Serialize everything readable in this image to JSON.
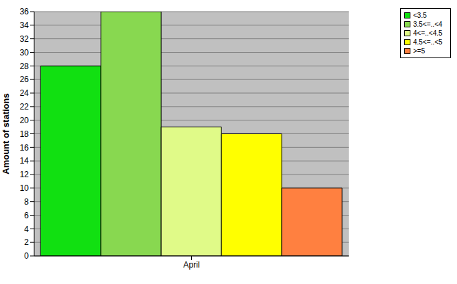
{
  "chart_data": {
    "type": "bar",
    "y_label": "Amount of stations",
    "categories": [
      "April"
    ],
    "series": [
      {
        "name": "<3.5",
        "color": "#11e011",
        "values": [
          28
        ]
      },
      {
        "name": "3.5<=..<4",
        "color": "#88d850",
        "values": [
          36
        ]
      },
      {
        "name": "4<=..<4.5",
        "color": "#e0fa88",
        "values": [
          19
        ]
      },
      {
        "name": "4.5<=..<5",
        "color": "#ffff00",
        "values": [
          18
        ]
      },
      {
        "name": ">=5",
        "color": "#ff8040",
        "values": [
          10
        ]
      }
    ],
    "ylim": [
      0,
      36
    ],
    "yticks": [
      0,
      2,
      4,
      6,
      8,
      10,
      12,
      14,
      16,
      18,
      20,
      22,
      24,
      26,
      28,
      30,
      32,
      34,
      36
    ],
    "grid": true,
    "legend": "top-right"
  }
}
